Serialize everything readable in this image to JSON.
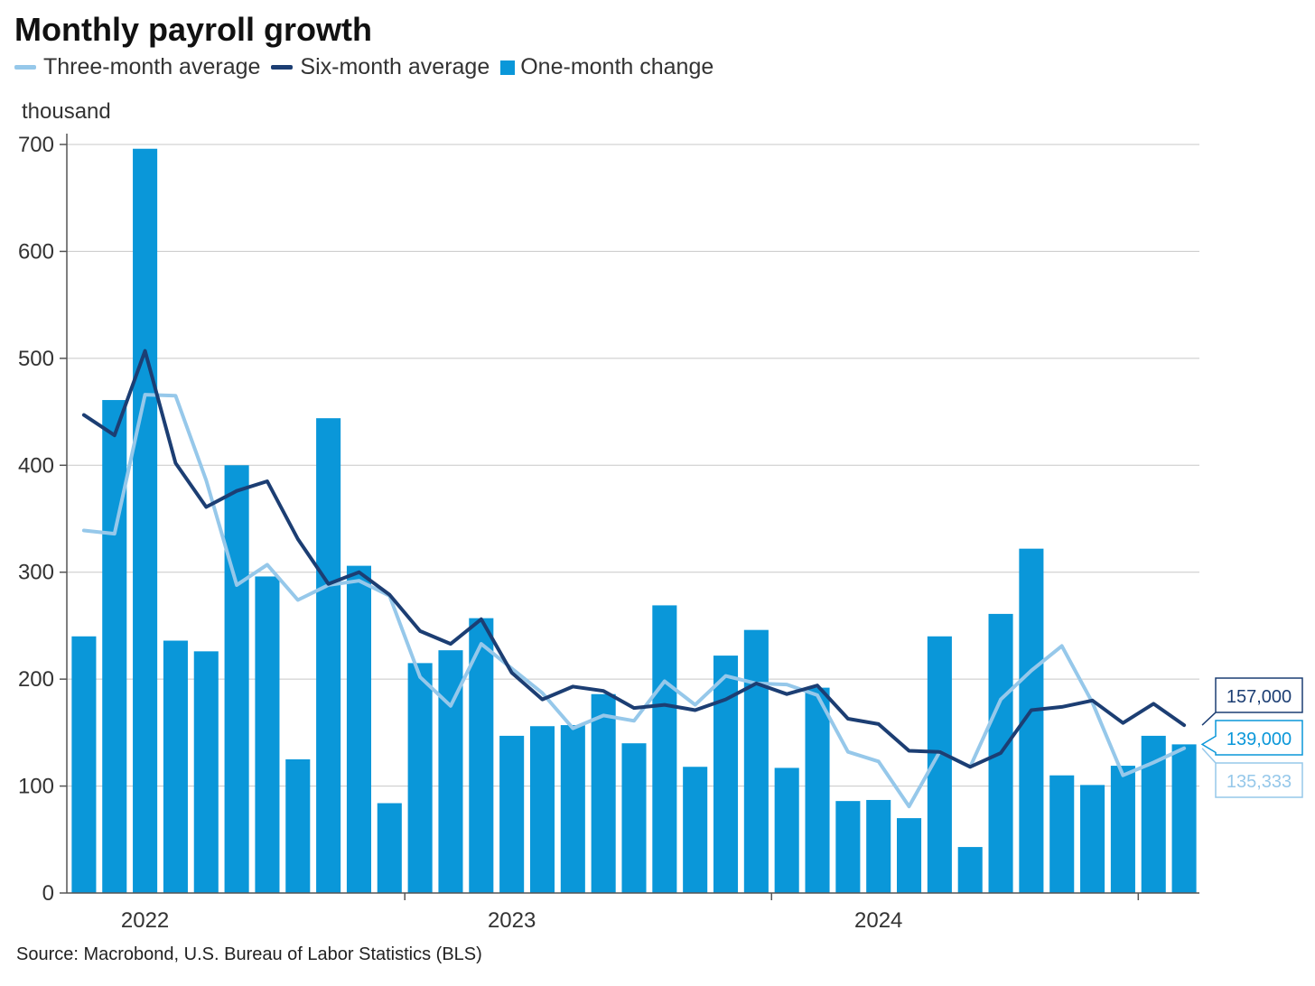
{
  "title": "Monthly payroll growth",
  "unit_label": "thousand",
  "source": "Source: Macrobond, U.S. Bureau of Labor Statistics (BLS)",
  "legend": [
    {
      "label": "Three-month average",
      "color": "#96c8ea",
      "kind": "line"
    },
    {
      "label": "Six-month average",
      "color": "#1c3e73",
      "kind": "line"
    },
    {
      "label": "One-month change",
      "color": "#0a97d9",
      "kind": "bar"
    }
  ],
  "callouts": [
    {
      "label": "157,000",
      "series": "Six-month average",
      "color": "#1c3e73"
    },
    {
      "label": "139,000",
      "series": "One-month change",
      "color": "#0a97d9"
    },
    {
      "label": "135,333",
      "series": "Three-month average",
      "color": "#96c8ea"
    }
  ],
  "chart_data": {
    "type": "bar",
    "x_tick_labels": [
      "2022",
      "2023",
      "2024"
    ],
    "y_ticks": [
      0,
      100,
      200,
      300,
      400,
      500,
      600,
      700
    ],
    "ylim": [
      0,
      700
    ],
    "grid": true,
    "legend_position": "top-left",
    "series": [
      {
        "name": "One-month change",
        "type": "bar",
        "color": "#0a97d9",
        "values": [
          240,
          461,
          696,
          236,
          226,
          400,
          296,
          125,
          444,
          306,
          84,
          215,
          227,
          257,
          147,
          156,
          157,
          186,
          140,
          269,
          118,
          222,
          246,
          117,
          192,
          86,
          87,
          70,
          240,
          43,
          261,
          322,
          110,
          101,
          119,
          147,
          139
        ]
      },
      {
        "name": "Three-month average",
        "type": "line",
        "color": "#96c8ea",
        "values": [
          339,
          336,
          466,
          465,
          386,
          288,
          307,
          274,
          288,
          292,
          278,
          202,
          175,
          233,
          210,
          187,
          154,
          166,
          161,
          198,
          176,
          203,
          196,
          195,
          185,
          132,
          123,
          81,
          132,
          118,
          181,
          208,
          231,
          178,
          110,
          122,
          135.333
        ]
      },
      {
        "name": "Six-month average",
        "type": "line",
        "color": "#1c3e73",
        "values": [
          447,
          428,
          507,
          402,
          361,
          376,
          385,
          331,
          289,
          300,
          279,
          245,
          233,
          256,
          206,
          181,
          193,
          189,
          173,
          176,
          171,
          181,
          196,
          186,
          194,
          163,
          158,
          133,
          132,
          118,
          131,
          171,
          174,
          180,
          159,
          177,
          157
        ]
      }
    ]
  }
}
